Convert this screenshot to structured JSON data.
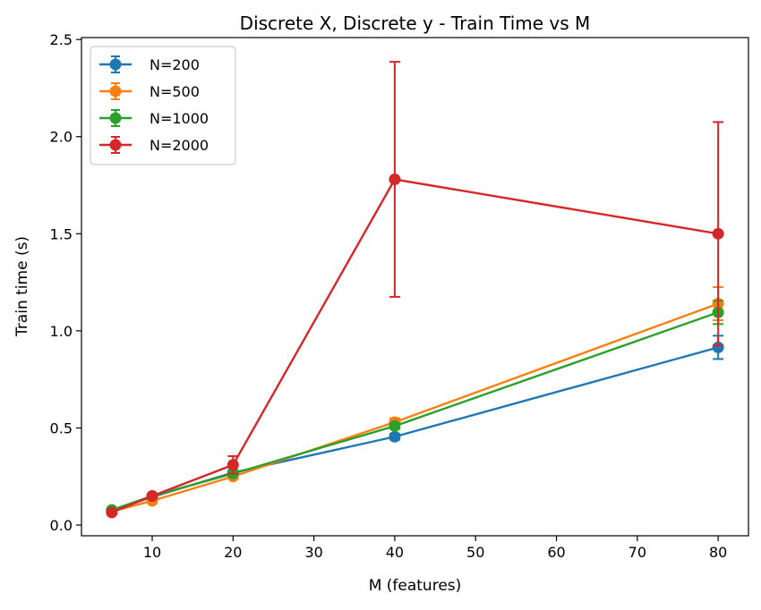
{
  "chart_data": {
    "type": "line",
    "title": "Discrete X, Discrete y - Train Time vs M",
    "xlabel": "M (features)",
    "ylabel": "Train time (s)",
    "xlim": [
      1.25,
      83.75
    ],
    "ylim": [
      -0.055,
      2.51
    ],
    "xticks": [
      10,
      20,
      30,
      40,
      50,
      60,
      70,
      80
    ],
    "yticks": [
      0.0,
      0.5,
      1.0,
      1.5,
      2.0,
      2.5
    ],
    "xtick_labels": [
      "10",
      "20",
      "30",
      "40",
      "50",
      "60",
      "70",
      "80"
    ],
    "ytick_labels": [
      "0.0",
      "0.5",
      "1.0",
      "1.5",
      "2.0",
      "2.5"
    ],
    "grid": false,
    "legend_position": "top-left",
    "x": [
      5,
      10,
      20,
      40,
      80
    ],
    "series": [
      {
        "name": "N=200",
        "color": "#1f77b4",
        "values": [
          0.075,
          0.145,
          0.27,
          0.455,
          0.915
        ],
        "errors": [
          0.003,
          0.005,
          0.01,
          0.015,
          0.06
        ]
      },
      {
        "name": "N=500",
        "color": "#ff7f0e",
        "values": [
          0.07,
          0.125,
          0.25,
          0.53,
          1.14
        ],
        "errors": [
          0.003,
          0.005,
          0.01,
          0.02,
          0.085
        ]
      },
      {
        "name": "N=1000",
        "color": "#2ca02c",
        "values": [
          0.078,
          0.15,
          0.265,
          0.51,
          1.095
        ],
        "errors": [
          0.003,
          0.005,
          0.01,
          0.015,
          0.06
        ]
      },
      {
        "name": "N=2000",
        "color": "#d62728",
        "values": [
          0.065,
          0.15,
          0.31,
          1.78,
          1.5
        ],
        "errors": [
          0.004,
          0.008,
          0.045,
          0.605,
          0.575
        ]
      }
    ]
  }
}
